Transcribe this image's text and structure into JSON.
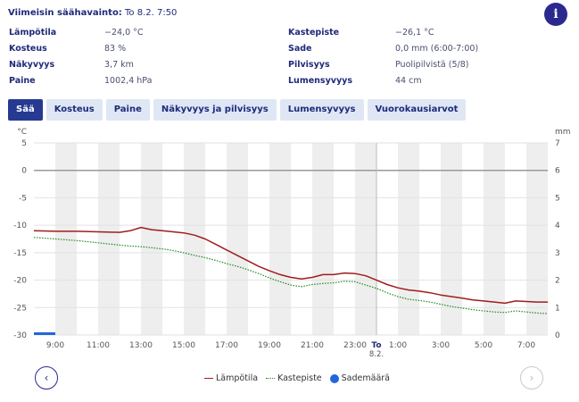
{
  "latest": {
    "label": "Viimeisin säähavainto:",
    "value": "To 8.2. 7:50"
  },
  "info_label": "i",
  "observations": [
    {
      "label": "Lämpötila",
      "value": "−24,0 °C"
    },
    {
      "label": "Kastepiste",
      "value": "−26,1 °C"
    },
    {
      "label": "Kosteus",
      "value": "83 %"
    },
    {
      "label": "Sade",
      "value": "0,0 mm (6:00-7:00)"
    },
    {
      "label": "Näkyvyys",
      "value": "3,7 km"
    },
    {
      "label": "Pilvisyys",
      "value": "Puolipilvistä (5/8)"
    },
    {
      "label": "Paine",
      "value": "1002,4 hPa"
    },
    {
      "label": "Lumensyvyys",
      "value": "44 cm"
    }
  ],
  "tabs": [
    {
      "label": "Sää",
      "active": true
    },
    {
      "label": "Kosteus",
      "active": false
    },
    {
      "label": "Paine",
      "active": false
    },
    {
      "label": "Näkyvyys ja pilvisyys",
      "active": false
    },
    {
      "label": "Lumensyvyys",
      "active": false
    },
    {
      "label": "Vuorokausiarvot",
      "active": false
    }
  ],
  "nav": {
    "prev": "‹",
    "next": "›"
  },
  "chart_data": {
    "type": "line",
    "ylabel_left": "°C",
    "ylabel_right": "mm",
    "ylim": [
      -30,
      5
    ],
    "y2lim": [
      0,
      7
    ],
    "yticks": [
      "5",
      "0",
      "-5",
      "-10",
      "-15",
      "-20",
      "-25",
      "-30"
    ],
    "y2ticks": [
      "7",
      "6",
      "5",
      "4",
      "3",
      "2",
      "1",
      "0"
    ],
    "xlim": [
      8,
      32
    ],
    "xticks": [
      {
        "h": 9,
        "label": "9:00"
      },
      {
        "h": 11,
        "label": "11:00"
      },
      {
        "h": 13,
        "label": "13:00"
      },
      {
        "h": 15,
        "label": "15:00"
      },
      {
        "h": 17,
        "label": "17:00"
      },
      {
        "h": 19,
        "label": "19:00"
      },
      {
        "h": 21,
        "label": "21:00"
      },
      {
        "h": 23,
        "label": "23:00"
      },
      {
        "h": 25,
        "label": "1:00"
      },
      {
        "h": 27,
        "label": "3:00"
      },
      {
        "h": 29,
        "label": "5:00"
      },
      {
        "h": 31,
        "label": "7:00"
      }
    ],
    "day_marker": {
      "h": 24,
      "label": "To",
      "sublabel": "8.2."
    },
    "series": [
      {
        "name": "Lämpötila",
        "color": "#a01d1d",
        "style": "solid",
        "x": [
          8,
          9,
          10,
          11,
          12,
          12.5,
          13,
          13.5,
          14,
          14.5,
          15,
          15.5,
          16,
          16.5,
          17,
          17.5,
          18,
          18.5,
          19,
          19.5,
          20,
          20.5,
          21,
          21.5,
          22,
          22.5,
          23,
          23.5,
          24,
          24.5,
          25,
          25.5,
          26,
          26.5,
          27,
          27.5,
          28,
          28.5,
          29,
          29.5,
          30,
          30.5,
          31,
          31.5,
          32
        ],
        "y": [
          -11,
          -11.1,
          -11.1,
          -11.2,
          -11.3,
          -11,
          -10.4,
          -10.8,
          -11,
          -11.2,
          -11.4,
          -11.8,
          -12.5,
          -13.5,
          -14.5,
          -15.5,
          -16.5,
          -17.5,
          -18.3,
          -19,
          -19.5,
          -19.8,
          -19.5,
          -19,
          -19,
          -18.7,
          -18.8,
          -19.2,
          -20,
          -20.8,
          -21.4,
          -21.8,
          -22,
          -22.3,
          -22.7,
          -23,
          -23.3,
          -23.6,
          -23.8,
          -24,
          -24.2,
          -23.8,
          -23.9,
          -24,
          -24
        ]
      },
      {
        "name": "Kastepiste",
        "color": "#1e8a1e",
        "style": "dotted",
        "x": [
          8,
          9,
          10,
          11,
          12,
          12.5,
          13,
          13.5,
          14,
          14.5,
          15,
          15.5,
          16,
          16.5,
          17,
          17.5,
          18,
          18.5,
          19,
          19.5,
          20,
          20.5,
          21,
          21.5,
          22,
          22.5,
          23,
          23.5,
          24,
          24.5,
          25,
          25.5,
          26,
          26.5,
          27,
          27.5,
          28,
          28.5,
          29,
          29.5,
          30,
          30.5,
          31,
          31.5,
          32
        ],
        "y": [
          -12.2,
          -12.5,
          -12.8,
          -13.2,
          -13.6,
          -13.8,
          -13.9,
          -14.1,
          -14.3,
          -14.6,
          -15,
          -15.5,
          -15.9,
          -16.4,
          -17,
          -17.5,
          -18.1,
          -18.8,
          -19.6,
          -20.3,
          -20.9,
          -21.2,
          -20.8,
          -20.6,
          -20.5,
          -20.2,
          -20.3,
          -20.9,
          -21.5,
          -22.3,
          -23,
          -23.5,
          -23.7,
          -24,
          -24.4,
          -24.8,
          -25.1,
          -25.4,
          -25.6,
          -25.8,
          -25.9,
          -25.6,
          -25.8,
          -26,
          -26.1
        ]
      },
      {
        "name": "Sademäärä",
        "color": "#2266dd",
        "style": "bar",
        "axis": "right",
        "x": [
          8,
          9
        ],
        "y": [
          0.05,
          0.05
        ]
      }
    ]
  },
  "legend": [
    {
      "label": "Lämpötila"
    },
    {
      "label": "Kastepiste"
    },
    {
      "label": "Sademäärä"
    }
  ]
}
